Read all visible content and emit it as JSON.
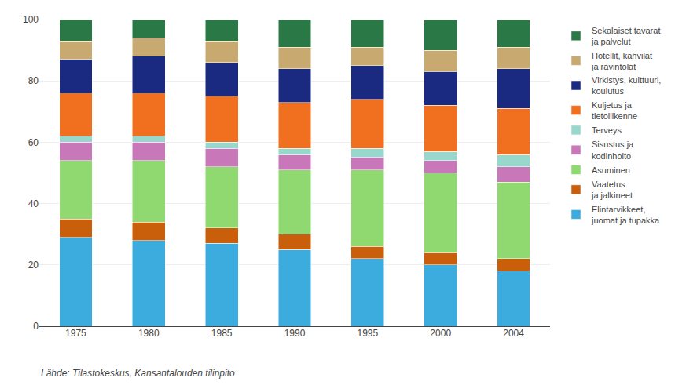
{
  "chart_data": {
    "type": "bar",
    "stacked": true,
    "categories": [
      "1975",
      "1980",
      "1985",
      "1990",
      "1995",
      "2000",
      "2004"
    ],
    "series": [
      {
        "name": "Elintarvikkeet,\njuomat ja tupakka",
        "color": "#3cacde",
        "values": [
          29,
          28,
          27,
          25,
          22,
          20,
          18
        ]
      },
      {
        "name": "Vaatetus\nja jalkineet",
        "color": "#c95f0a",
        "values": [
          6,
          6,
          5,
          5,
          4,
          4,
          4
        ]
      },
      {
        "name": "Asuminen",
        "color": "#90d870",
        "values": [
          19,
          20,
          20,
          21,
          25,
          26,
          25
        ]
      },
      {
        "name": "Sisustus ja\nkodinhoito",
        "color": "#c878b8",
        "values": [
          6,
          6,
          6,
          5,
          4,
          4,
          5
        ]
      },
      {
        "name": "Terveys",
        "color": "#98d8cc",
        "values": [
          2,
          2,
          2,
          2,
          3,
          3,
          4
        ]
      },
      {
        "name": "Kuljetus ja\ntietoliikenne",
        "color": "#f07020",
        "values": [
          14,
          14,
          15,
          15,
          16,
          15,
          15
        ]
      },
      {
        "name": "Virkistys, kulttuuri,\nkoulutus",
        "color": "#1a2a80",
        "values": [
          11,
          12,
          11,
          11,
          11,
          11,
          13
        ]
      },
      {
        "name": "Hotellit, kahvilat\nja ravintolat",
        "color": "#c8aa70",
        "values": [
          6,
          6,
          7,
          7,
          6,
          7,
          7
        ]
      },
      {
        "name": "Sekalaiset tavarat\nja palvelut",
        "color": "#2a7845",
        "values": [
          7,
          6,
          7,
          9,
          9,
          10,
          9
        ]
      }
    ],
    "ylim": [
      0,
      100
    ],
    "yticks": [
      0,
      20,
      40,
      60,
      80,
      100
    ],
    "grid": true,
    "legend": "right",
    "annotations": [
      "Lähde: Tilastokeskus, Kansantalouden tilinpito"
    ]
  }
}
